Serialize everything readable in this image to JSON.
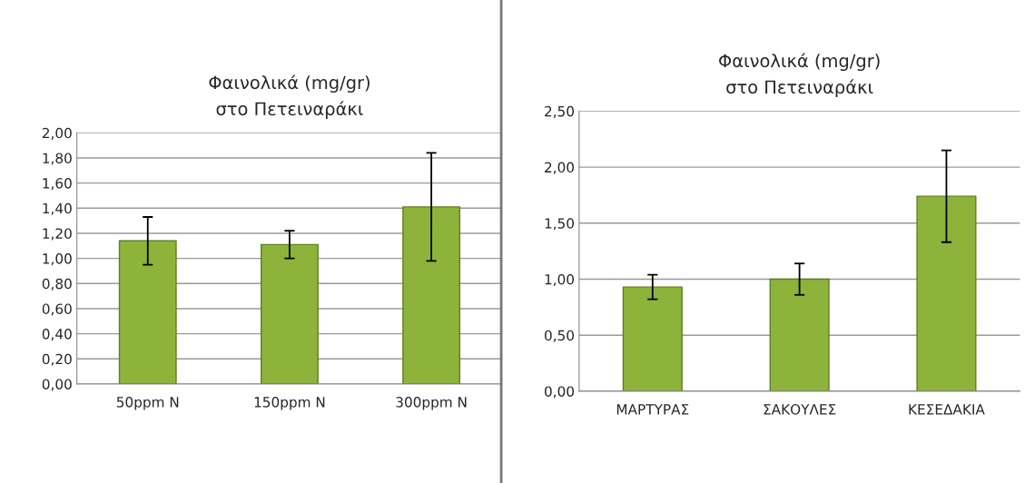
{
  "chart_data": [
    {
      "type": "bar",
      "title": "Φαινολικά (mg/gr)\nστο Πετειναράκι",
      "categories": [
        "50ppm N",
        "150ppm N",
        "300ppm N"
      ],
      "values": [
        1.14,
        1.11,
        1.41
      ],
      "errors": [
        0.19,
        0.11,
        0.43
      ],
      "color": "#8db33a",
      "ylim": [
        0,
        2
      ],
      "yticks": [
        {
          "value": 0,
          "label": "0,00"
        },
        {
          "value": 0.2,
          "label": "0,20"
        },
        {
          "value": 0.4,
          "label": "0,40"
        },
        {
          "value": 0.6,
          "label": "0,60"
        },
        {
          "value": 0.8,
          "label": "0,80"
        },
        {
          "value": 1.0,
          "label": "1,00"
        },
        {
          "value": 1.2,
          "label": "1,20"
        },
        {
          "value": 1.4,
          "label": "1,40"
        },
        {
          "value": 1.6,
          "label": "1,60"
        },
        {
          "value": 1.8,
          "label": "1,80"
        },
        {
          "value": 2.0,
          "label": "2,00"
        }
      ],
      "grid": "y"
    },
    {
      "type": "bar",
      "title": "Φαινολικά (mg/gr)\nστο Πετειναράκι",
      "categories": [
        "ΜΑΡΤΥΡΑΣ",
        "ΣΑΚΟΥΛΕΣ",
        "ΚΕΣΕΔΑΚΙΑ"
      ],
      "values": [
        0.93,
        1.0,
        1.74
      ],
      "errors": [
        0.11,
        0.14,
        0.41
      ],
      "color": "#8db33a",
      "ylim": [
        0,
        2.5
      ],
      "yticks": [
        {
          "value": 0,
          "label": "0,00"
        },
        {
          "value": 0.5,
          "label": "0,50"
        },
        {
          "value": 1.0,
          "label": "1,00"
        },
        {
          "value": 1.5,
          "label": "1,50"
        },
        {
          "value": 2.0,
          "label": "2,00"
        },
        {
          "value": 2.5,
          "label": "2,50"
        }
      ],
      "grid": "y"
    }
  ]
}
